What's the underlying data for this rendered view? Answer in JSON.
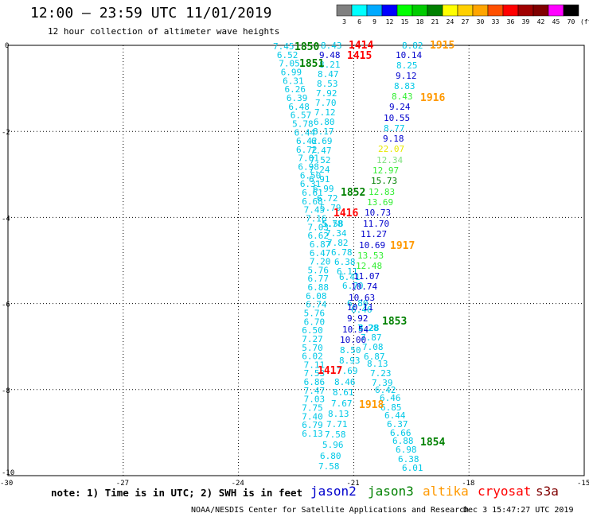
{
  "header": {
    "title": "12:00 — 23:59 UTC 11/01/2019",
    "subtitle": "12 hour collection of altimeter wave heights"
  },
  "legend": {
    "unit": "(ft)",
    "bins": [
      {
        "label": "3",
        "color": "#808080"
      },
      {
        "label": "6",
        "color": "#00ffff"
      },
      {
        "label": "9",
        "color": "#00aaff"
      },
      {
        "label": "12",
        "color": "#0000ff"
      },
      {
        "label": "15",
        "color": "#00ff00"
      },
      {
        "label": "18",
        "color": "#00cc00"
      },
      {
        "label": "21",
        "color": "#008000"
      },
      {
        "label": "24",
        "color": "#ffff00"
      },
      {
        "label": "27",
        "color": "#ffd000"
      },
      {
        "label": "30",
        "color": "#ffa500"
      },
      {
        "label": "33",
        "color": "#ff5000"
      },
      {
        "label": "36",
        "color": "#ff0000"
      },
      {
        "label": "39",
        "color": "#a00000"
      },
      {
        "label": "42",
        "color": "#800000"
      },
      {
        "label": "45",
        "color": "#ff00ff"
      },
      {
        "label": "70",
        "color": "#000000"
      }
    ]
  },
  "axes": {
    "x_ticks": [
      "-30",
      "-27",
      "-24",
      "-21",
      "-18",
      "-15"
    ],
    "y_ticks": [
      "0",
      "-2",
      "-4",
      "-6",
      "-8",
      "-10"
    ],
    "xlim": [
      -30,
      -15
    ],
    "ylim": [
      -10,
      0
    ]
  },
  "colors": {
    "gray": "#808080",
    "cyan": "#00c8e6",
    "lightblue": "#1e90ff",
    "blue": "#0000cc",
    "lime": "#33ee33",
    "lightgreen": "#80e080",
    "green": "#008000",
    "yellow": "#e8e800",
    "orange": "#ff9900",
    "red": "#ff0000"
  },
  "tracks": [
    {
      "name": "track-a",
      "values": [
        {
          "t": "7.45",
          "c": "cyan",
          "lon": -23.1,
          "lat": -0.02
        },
        {
          "t": "6.52",
          "c": "cyan",
          "lon": -23.0,
          "lat": -0.22
        },
        {
          "t": "7.05",
          "c": "cyan",
          "lon": -22.95,
          "lat": -0.42
        },
        {
          "t": "6.99",
          "c": "cyan",
          "lon": -22.9,
          "lat": -0.62
        },
        {
          "t": "6.31",
          "c": "cyan",
          "lon": -22.85,
          "lat": -0.82
        },
        {
          "t": "6.26",
          "c": "cyan",
          "lon": -22.8,
          "lat": -1.02
        },
        {
          "t": "6.39",
          "c": "cyan",
          "lon": -22.75,
          "lat": -1.22
        },
        {
          "t": "6.48",
          "c": "cyan",
          "lon": -22.7,
          "lat": -1.42
        },
        {
          "t": "6.57",
          "c": "cyan",
          "lon": -22.65,
          "lat": -1.62
        },
        {
          "t": "5.78",
          "c": "cyan",
          "lon": -22.6,
          "lat": -1.82
        },
        {
          "t": "6.44",
          "c": "cyan",
          "lon": -22.55,
          "lat": -2.02
        },
        {
          "t": "6.42",
          "c": "cyan",
          "lon": -22.5,
          "lat": -2.22
        },
        {
          "t": "6.72",
          "c": "cyan",
          "lon": -22.5,
          "lat": -2.42
        },
        {
          "t": "7.01",
          "c": "cyan",
          "lon": -22.45,
          "lat": -2.62
        },
        {
          "t": "6.98",
          "c": "cyan",
          "lon": -22.45,
          "lat": -2.82
        },
        {
          "t": "6.50",
          "c": "cyan",
          "lon": -22.4,
          "lat": -3.02
        },
        {
          "t": "6.31",
          "c": "cyan",
          "lon": -22.4,
          "lat": -3.22
        },
        {
          "t": "6.61",
          "c": "cyan",
          "lon": -22.35,
          "lat": -3.42
        },
        {
          "t": "6.68",
          "c": "cyan",
          "lon": -22.35,
          "lat": -3.62
        },
        {
          "t": "7.45",
          "c": "cyan",
          "lon": -22.3,
          "lat": -3.82
        },
        {
          "t": "7.16",
          "c": "cyan",
          "lon": -22.25,
          "lat": -4.02
        },
        {
          "t": "7.03",
          "c": "cyan",
          "lon": -22.2,
          "lat": -4.22
        },
        {
          "t": "6.62",
          "c": "cyan",
          "lon": -22.2,
          "lat": -4.42
        },
        {
          "t": "6.87",
          "c": "cyan",
          "lon": -22.15,
          "lat": -4.62
        },
        {
          "t": "6.47",
          "c": "cyan",
          "lon": -22.15,
          "lat": -4.82
        },
        {
          "t": "7.20",
          "c": "cyan",
          "lon": -22.15,
          "lat": -5.02
        },
        {
          "t": "5.76",
          "c": "cyan",
          "lon": -22.2,
          "lat": -5.22
        },
        {
          "t": "6.77",
          "c": "cyan",
          "lon": -22.2,
          "lat": -5.42
        },
        {
          "t": "6.88",
          "c": "cyan",
          "lon": -22.2,
          "lat": -5.62
        },
        {
          "t": "6.08",
          "c": "cyan",
          "lon": -22.25,
          "lat": -5.82
        },
        {
          "t": "6.74",
          "c": "cyan",
          "lon": -22.25,
          "lat": -6.02
        },
        {
          "t": "5.76",
          "c": "cyan",
          "lon": -22.3,
          "lat": -6.22
        },
        {
          "t": "6.70",
          "c": "cyan",
          "lon": -22.3,
          "lat": -6.42
        },
        {
          "t": "6.50",
          "c": "cyan",
          "lon": -22.35,
          "lat": -6.62
        },
        {
          "t": "7.27",
          "c": "cyan",
          "lon": -22.35,
          "lat": -6.82
        },
        {
          "t": "5.70",
          "c": "cyan",
          "lon": -22.35,
          "lat": -7.02
        },
        {
          "t": "6.02",
          "c": "cyan",
          "lon": -22.35,
          "lat": -7.22
        },
        {
          "t": "7.11",
          "c": "cyan",
          "lon": -22.3,
          "lat": -7.42
        },
        {
          "t": "7.53",
          "c": "cyan",
          "lon": -22.3,
          "lat": -7.62
        },
        {
          "t": "6.86",
          "c": "cyan",
          "lon": -22.3,
          "lat": -7.82
        },
        {
          "t": "7.47",
          "c": "cyan",
          "lon": -22.3,
          "lat": -8.02
        },
        {
          "t": "7.03",
          "c": "cyan",
          "lon": -22.3,
          "lat": -8.22
        },
        {
          "t": "7.75",
          "c": "cyan",
          "lon": -22.35,
          "lat": -8.42
        },
        {
          "t": "7.40",
          "c": "cyan",
          "lon": -22.35,
          "lat": -8.62
        },
        {
          "t": "6.79",
          "c": "cyan",
          "lon": -22.35,
          "lat": -8.82
        },
        {
          "t": "6.13",
          "c": "cyan",
          "lon": -22.35,
          "lat": -9.02
        }
      ]
    }
  ],
  "sat_labels": [
    {
      "t": "1850",
      "c": "green"
    },
    {
      "t": "1851",
      "c": "green"
    },
    {
      "t": "1414",
      "c": "red"
    },
    {
      "t": "1415",
      "c": "red"
    },
    {
      "t": "1915",
      "c": "orange"
    },
    {
      "t": "1916",
      "c": "orange"
    },
    {
      "t": "1852",
      "c": "green"
    },
    {
      "t": "1416",
      "c": "red"
    },
    {
      "t": "1917",
      "c": "orange"
    },
    {
      "t": "1853",
      "c": "green"
    },
    {
      "t": "1417",
      "c": "red"
    },
    {
      "t": "1918",
      "c": "orange"
    },
    {
      "t": "1854",
      "c": "green"
    }
  ],
  "footer": {
    "note": "note: 1) Time is in UTC; 2) SWH is in feet",
    "satellites": [
      {
        "name": "jason2",
        "color": "#0000cc"
      },
      {
        "name": "jason3",
        "color": "#008000"
      },
      {
        "name": "altika",
        "color": "#ff9900"
      },
      {
        "name": "cryosat",
        "color": "#ff0000"
      },
      {
        "name": "s3a",
        "color": "#800000"
      }
    ],
    "credit": "NOAA/NESDIS Center for Satellite Applications and Research",
    "timestamp": "Dec  3 15:47:27 UTC 2019"
  }
}
